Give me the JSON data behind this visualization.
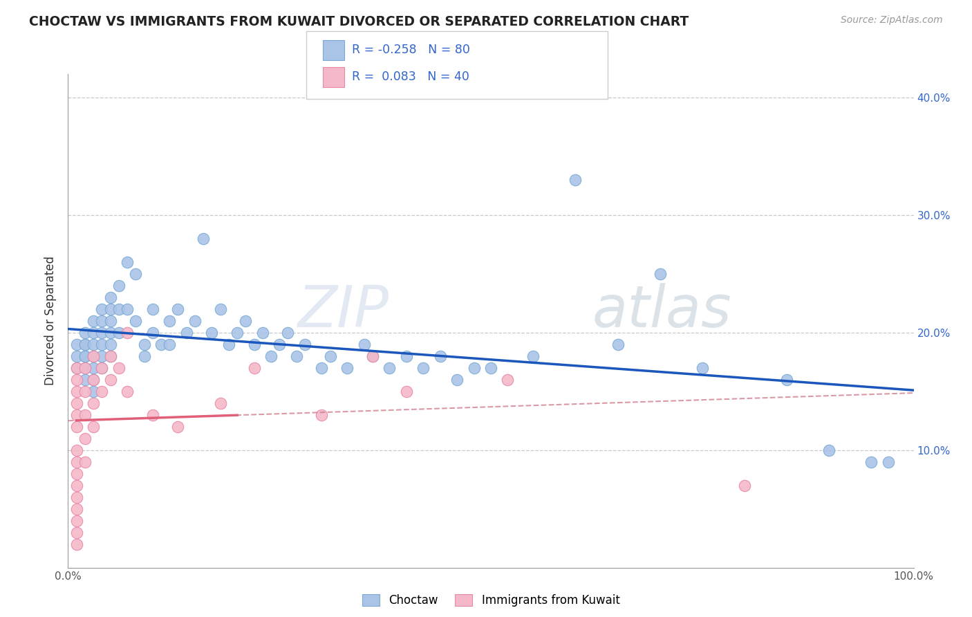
{
  "title": "CHOCTAW VS IMMIGRANTS FROM KUWAIT DIVORCED OR SEPARATED CORRELATION CHART",
  "source_text": "Source: ZipAtlas.com",
  "ylabel": "Divorced or Separated",
  "xlabel": "",
  "xlim": [
    0.0,
    1.0
  ],
  "ylim": [
    0.0,
    0.42
  ],
  "blue_R": -0.258,
  "blue_N": 80,
  "pink_R": 0.083,
  "pink_N": 40,
  "legend_label_blue": "Choctaw",
  "legend_label_pink": "Immigrants from Kuwait",
  "blue_color": "#aac4e8",
  "blue_edge_color": "#7aaad4",
  "blue_line_color": "#1a56bb",
  "pink_color": "#f5b8c8",
  "pink_edge_color": "#e888a8",
  "pink_line_color": "#e0607a",
  "pink_dash_color": "#d08090",
  "background_color": "#ffffff",
  "grid_color": "#c8c8c8",
  "title_color": "#222222",
  "watermark_zip_color": "#d0d8e8",
  "watermark_atlas_color": "#c0ccd8",
  "right_tick_color": "#3366cc",
  "blue_x": [
    0.01,
    0.01,
    0.01,
    0.02,
    0.02,
    0.02,
    0.02,
    0.02,
    0.02,
    0.02,
    0.03,
    0.03,
    0.03,
    0.03,
    0.03,
    0.03,
    0.03,
    0.04,
    0.04,
    0.04,
    0.04,
    0.04,
    0.04,
    0.05,
    0.05,
    0.05,
    0.05,
    0.05,
    0.05,
    0.06,
    0.06,
    0.06,
    0.07,
    0.07,
    0.08,
    0.08,
    0.09,
    0.09,
    0.1,
    0.1,
    0.11,
    0.12,
    0.12,
    0.13,
    0.14,
    0.15,
    0.16,
    0.17,
    0.18,
    0.19,
    0.2,
    0.21,
    0.22,
    0.23,
    0.24,
    0.25,
    0.26,
    0.27,
    0.28,
    0.3,
    0.31,
    0.33,
    0.35,
    0.36,
    0.38,
    0.4,
    0.42,
    0.44,
    0.46,
    0.48,
    0.5,
    0.55,
    0.6,
    0.65,
    0.7,
    0.75,
    0.85,
    0.9,
    0.95,
    0.97
  ],
  "blue_y": [
    0.19,
    0.18,
    0.17,
    0.2,
    0.19,
    0.18,
    0.17,
    0.16,
    0.19,
    0.18,
    0.21,
    0.2,
    0.19,
    0.18,
    0.17,
    0.16,
    0.15,
    0.22,
    0.21,
    0.2,
    0.19,
    0.18,
    0.17,
    0.23,
    0.22,
    0.21,
    0.2,
    0.19,
    0.18,
    0.24,
    0.22,
    0.2,
    0.26,
    0.22,
    0.25,
    0.21,
    0.19,
    0.18,
    0.22,
    0.2,
    0.19,
    0.21,
    0.19,
    0.22,
    0.2,
    0.21,
    0.28,
    0.2,
    0.22,
    0.19,
    0.2,
    0.21,
    0.19,
    0.2,
    0.18,
    0.19,
    0.2,
    0.18,
    0.19,
    0.17,
    0.18,
    0.17,
    0.19,
    0.18,
    0.17,
    0.18,
    0.17,
    0.18,
    0.16,
    0.17,
    0.17,
    0.18,
    0.33,
    0.19,
    0.25,
    0.17,
    0.16,
    0.1,
    0.09,
    0.09
  ],
  "pink_x": [
    0.01,
    0.01,
    0.01,
    0.01,
    0.01,
    0.01,
    0.01,
    0.01,
    0.01,
    0.01,
    0.01,
    0.01,
    0.01,
    0.01,
    0.01,
    0.02,
    0.02,
    0.02,
    0.02,
    0.02,
    0.03,
    0.03,
    0.03,
    0.03,
    0.04,
    0.04,
    0.05,
    0.05,
    0.06,
    0.07,
    0.1,
    0.13,
    0.18,
    0.22,
    0.3,
    0.36,
    0.4,
    0.52,
    0.8,
    0.07
  ],
  "pink_y": [
    0.17,
    0.16,
    0.15,
    0.14,
    0.13,
    0.12,
    0.1,
    0.09,
    0.08,
    0.07,
    0.06,
    0.05,
    0.04,
    0.03,
    0.02,
    0.17,
    0.15,
    0.13,
    0.11,
    0.09,
    0.18,
    0.16,
    0.14,
    0.12,
    0.17,
    0.15,
    0.18,
    0.16,
    0.17,
    0.15,
    0.13,
    0.12,
    0.14,
    0.17,
    0.13,
    0.18,
    0.15,
    0.16,
    0.07,
    0.2
  ]
}
